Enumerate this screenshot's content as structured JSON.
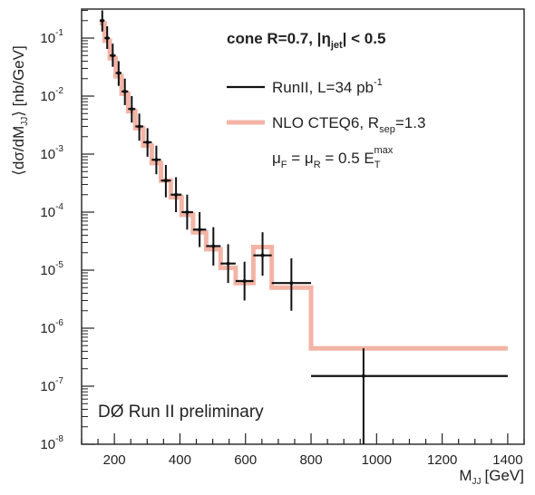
{
  "chart_data": {
    "type": "scatter",
    "title": "",
    "xlabel": "M",
    "xlabel_sub": "JJ",
    "xlabel_unit": "[GeV]",
    "ylabel_parts": [
      "⟨dσ/dM",
      "JJ",
      "⟩ [nb/GeV]"
    ],
    "xlim": [
      100,
      1450
    ],
    "ylim_log10": [
      -8,
      -0.5
    ],
    "y_scale": "log",
    "x_ticks": [
      200,
      400,
      600,
      800,
      1000,
      1200,
      1400
    ],
    "y_tick_exponents": [
      -8,
      -7,
      -6,
      -5,
      -4,
      -3,
      -2,
      -1
    ],
    "y_tick_base": "10",
    "annotation": "DØ Run II preliminary",
    "legend": {
      "position": "top-right",
      "header": [
        "cone R=0.7, |η",
        "jet",
        "| < 0.5"
      ],
      "data_label": [
        "RunII, L=34 pb",
        "-1"
      ],
      "theory_label": [
        "NLO CTEQ6, R",
        "sep",
        "=1.3"
      ],
      "scale_label": [
        "μ",
        "F",
        " = μ",
        "R",
        " = 0.5 E",
        "T",
        "max"
      ]
    },
    "series": [
      {
        "name": "RunII, L=34 pb⁻¹",
        "color": "#111111",
        "points": [
          {
            "x": 163,
            "xlo": 155,
            "xhi": 170,
            "y": 0.2,
            "ylo": 0.13,
            "yhi": 0.3
          },
          {
            "x": 178,
            "xlo": 170,
            "xhi": 186,
            "y": 0.1,
            "ylo": 0.065,
            "yhi": 0.16
          },
          {
            "x": 195,
            "xlo": 186,
            "xhi": 204,
            "y": 0.05,
            "ylo": 0.032,
            "yhi": 0.08
          },
          {
            "x": 213,
            "xlo": 204,
            "xhi": 222,
            "y": 0.025,
            "ylo": 0.015,
            "yhi": 0.04
          },
          {
            "x": 232,
            "xlo": 222,
            "xhi": 242,
            "y": 0.012,
            "ylo": 0.007,
            "yhi": 0.02
          },
          {
            "x": 253,
            "xlo": 242,
            "xhi": 264,
            "y": 0.006,
            "ylo": 0.0035,
            "yhi": 0.01
          },
          {
            "x": 276,
            "xlo": 264,
            "xhi": 288,
            "y": 0.003,
            "ylo": 0.0017,
            "yhi": 0.005
          },
          {
            "x": 301,
            "xlo": 288,
            "xhi": 314,
            "y": 0.0016,
            "ylo": 0.0009,
            "yhi": 0.0028
          },
          {
            "x": 328,
            "xlo": 314,
            "xhi": 342,
            "y": 0.0008,
            "ylo": 0.00045,
            "yhi": 0.0014
          },
          {
            "x": 357,
            "xlo": 342,
            "xhi": 372,
            "y": 0.00035,
            "ylo": 0.00018,
            "yhi": 0.00065
          },
          {
            "x": 388,
            "xlo": 372,
            "xhi": 405,
            "y": 0.0002,
            "ylo": 0.0001,
            "yhi": 0.0004
          },
          {
            "x": 422,
            "xlo": 405,
            "xhi": 440,
            "y": 0.0001,
            "ylo": 5e-05,
            "yhi": 0.0002
          },
          {
            "x": 460,
            "xlo": 440,
            "xhi": 480,
            "y": 5e-05,
            "ylo": 2.5e-05,
            "yhi": 0.0001
          },
          {
            "x": 502,
            "xlo": 480,
            "xhi": 524,
            "y": 2.6e-05,
            "ylo": 1.2e-05,
            "yhi": 5.5e-05
          },
          {
            "x": 547,
            "xlo": 524,
            "xhi": 570,
            "y": 1.3e-05,
            "ylo": 6e-06,
            "yhi": 2.8e-05
          },
          {
            "x": 597,
            "xlo": 570,
            "xhi": 624,
            "y": 6.5e-06,
            "ylo": 3e-06,
            "yhi": 1.4e-05
          },
          {
            "x": 652,
            "xlo": 624,
            "xhi": 680,
            "y": 1.8e-05,
            "ylo": 8e-06,
            "yhi": 4.5e-05
          },
          {
            "x": 740,
            "xlo": 680,
            "xhi": 800,
            "y": 6e-06,
            "ylo": 2e-06,
            "yhi": 1.6e-05
          },
          {
            "x": 960,
            "xlo": 800,
            "xhi": 1400,
            "y": 1.5e-07,
            "ylo": 1e-08,
            "yhi": 4.5e-07
          }
        ]
      },
      {
        "name": "NLO CTEQ6, Rsep=1.3",
        "color": "#f3b4a6",
        "steps": [
          {
            "xlo": 155,
            "xhi": 170,
            "y": 0.18
          },
          {
            "xlo": 170,
            "xhi": 186,
            "y": 0.09
          },
          {
            "xlo": 186,
            "xhi": 204,
            "y": 0.045
          },
          {
            "xlo": 204,
            "xhi": 222,
            "y": 0.022
          },
          {
            "xlo": 222,
            "xhi": 242,
            "y": 0.011
          },
          {
            "xlo": 242,
            "xhi": 264,
            "y": 0.0055
          },
          {
            "xlo": 264,
            "xhi": 288,
            "y": 0.0028
          },
          {
            "xlo": 288,
            "xhi": 314,
            "y": 0.0014
          },
          {
            "xlo": 314,
            "xhi": 342,
            "y": 0.0007
          },
          {
            "xlo": 342,
            "xhi": 372,
            "y": 0.00035
          },
          {
            "xlo": 372,
            "xhi": 405,
            "y": 0.00018
          },
          {
            "xlo": 405,
            "xhi": 440,
            "y": 9e-05
          },
          {
            "xlo": 440,
            "xhi": 480,
            "y": 4.5e-05
          },
          {
            "xlo": 480,
            "xhi": 524,
            "y": 2.3e-05
          },
          {
            "xlo": 524,
            "xhi": 570,
            "y": 1.1e-05
          },
          {
            "xlo": 570,
            "xhi": 624,
            "y": 6e-06
          },
          {
            "xlo": 624,
            "xhi": 680,
            "y": 2.5e-05
          },
          {
            "xlo": 680,
            "xhi": 800,
            "y": 5e-06
          },
          {
            "xlo": 800,
            "xhi": 1400,
            "y": 4.5e-07
          }
        ]
      }
    ]
  }
}
